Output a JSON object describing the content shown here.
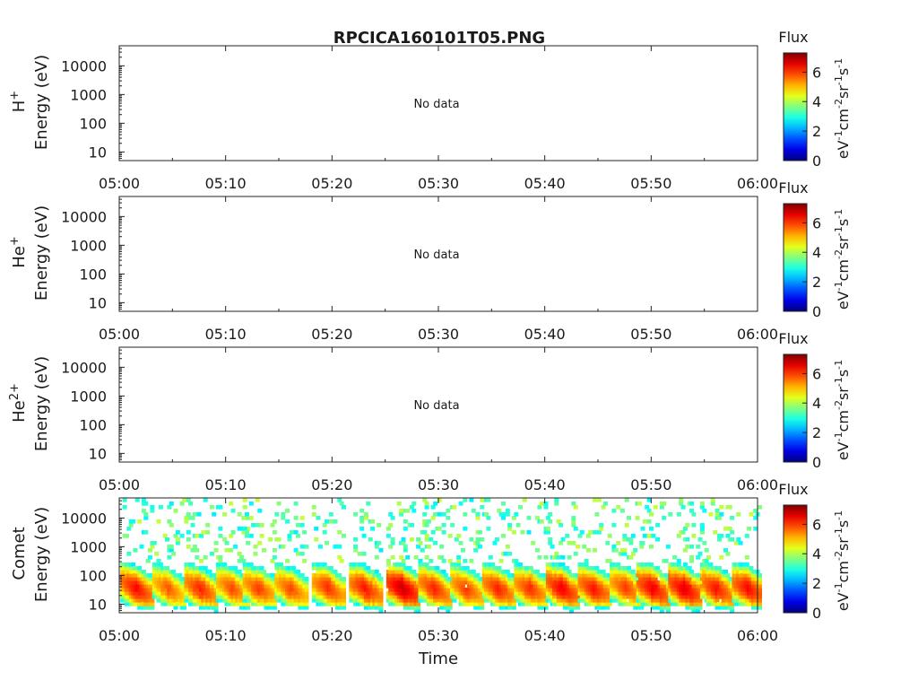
{
  "chart_data": {
    "type": "heatmap",
    "title": "RPCICA160101T05.PNG",
    "xlabel": "Time",
    "x_ticks": [
      "05:00",
      "05:10",
      "05:20",
      "05:30",
      "05:40",
      "05:50",
      "06:00"
    ],
    "xlim": [
      "05:00",
      "06:00"
    ],
    "y_scale": "log",
    "y_ticks": [
      "10",
      "100",
      "1000",
      "10000"
    ],
    "ylim": [
      5,
      50000
    ],
    "panels": [
      {
        "species": "H",
        "species_sup": "+",
        "ylabel": "Energy (eV)",
        "message": "No data",
        "has_data": false
      },
      {
        "species": "He",
        "species_sup": "+",
        "ylabel": "Energy (eV)",
        "message": "No data",
        "has_data": false
      },
      {
        "species": "He",
        "species_sup": "2+",
        "ylabel": "Energy (eV)",
        "message": "No data",
        "has_data": false
      },
      {
        "species": "Comet",
        "species_sup": "",
        "ylabel": "Energy (eV)",
        "message": "",
        "has_data": true,
        "bursts": [
          {
            "t": "05:01:30",
            "log_flux": 6.4
          },
          {
            "t": "05:04:30",
            "log_flux": 5.8
          },
          {
            "t": "05:07:30",
            "log_flux": 6.2
          },
          {
            "t": "05:10:30",
            "log_flux": 5.9
          },
          {
            "t": "05:13:00",
            "log_flux": 6.0
          },
          {
            "t": "05:16:00",
            "log_flux": 5.9
          },
          {
            "t": "05:19:30",
            "log_flux": 6.1
          },
          {
            "t": "05:23:00",
            "log_flux": 6.3
          },
          {
            "t": "05:26:30",
            "log_flux": 6.8
          },
          {
            "t": "05:29:30",
            "log_flux": 6.2
          },
          {
            "t": "05:32:30",
            "log_flux": 6.0
          },
          {
            "t": "05:35:30",
            "log_flux": 6.2
          },
          {
            "t": "05:38:30",
            "log_flux": 6.1
          },
          {
            "t": "05:41:30",
            "log_flux": 6.5
          },
          {
            "t": "05:44:30",
            "log_flux": 6.3
          },
          {
            "t": "05:47:30",
            "log_flux": 6.0
          },
          {
            "t": "05:50:00",
            "log_flux": 6.5
          },
          {
            "t": "05:53:00",
            "log_flux": 6.6
          },
          {
            "t": "05:56:00",
            "log_flux": 6.3
          },
          {
            "t": "05:59:00",
            "log_flux": 6.4
          }
        ]
      }
    ],
    "colorbar": {
      "label": "Flux",
      "units": "eV-1cm-2sr-1s-1",
      "ticks": [
        "0",
        "2",
        "4",
        "6"
      ],
      "range": [
        0,
        7.3
      ],
      "colormap": "jet"
    }
  }
}
